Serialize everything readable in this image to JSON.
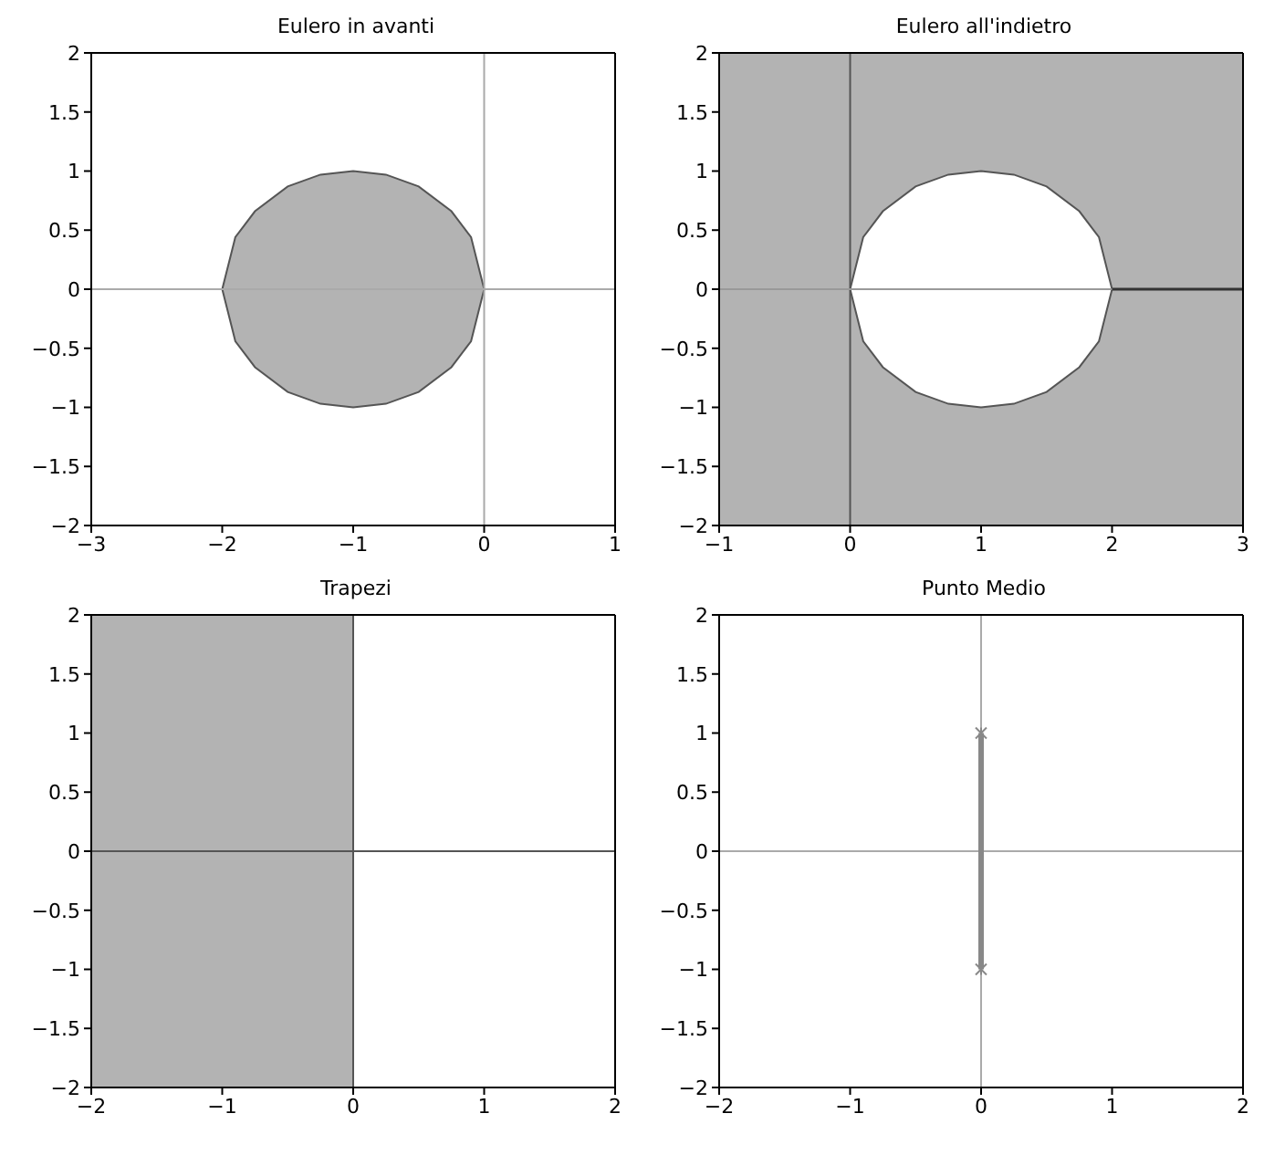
{
  "chart_data": [
    {
      "type": "area",
      "title": "Eulero in avanti",
      "xlim": [
        -3,
        1
      ],
      "ylim": [
        -2,
        2
      ],
      "xticks": [
        {
          "value": -3,
          "label": "−3"
        },
        {
          "value": -2,
          "label": "−2"
        },
        {
          "value": -1,
          "label": "−1"
        },
        0,
        1
      ],
      "yticks": [
        {
          "value": -2,
          "label": "−2"
        },
        {
          "value": -1.5,
          "label": "−1.5"
        },
        {
          "value": -1,
          "label": "−1"
        },
        {
          "value": -0.5,
          "label": "−0.5"
        },
        0,
        0.5,
        1,
        1.5,
        2
      ],
      "series": [
        {
          "color": "#b3b3b3",
          "x": [
            -2,
            -1.9,
            -1.75,
            -1.5,
            -1.25,
            -1,
            -0.75,
            -0.5,
            -0.25,
            -0.1,
            0
          ],
          "values": [
            0,
            0.44,
            0.66,
            0.87,
            0.97,
            1,
            0.97,
            0.87,
            0.66,
            0.44,
            0
          ]
        },
        {
          "color": "#b3b3b3",
          "x": [
            -2,
            -1.9,
            -1.75,
            -1.5,
            -1.25,
            -1,
            -0.75,
            -0.5,
            -0.25,
            -0.1,
            0
          ],
          "values": [
            0,
            -0.44,
            -0.66,
            -0.87,
            -0.97,
            -1,
            -0.97,
            -0.87,
            -0.66,
            -0.44,
            0
          ]
        }
      ],
      "ref_lines": [
        {
          "axis": "x",
          "value": 0,
          "color": "#aaaaaa"
        },
        {
          "axis": "y",
          "value": 0,
          "color": "#aaaaaa"
        }
      ]
    },
    {
      "type": "area",
      "title": "Eulero all'indietro",
      "xlim": [
        -1,
        3
      ],
      "ylim": [
        -2,
        2
      ],
      "xticks": [
        {
          "value": -1,
          "label": "−1"
        },
        0,
        1,
        2,
        3
      ],
      "yticks": [
        {
          "value": -2,
          "label": "−2"
        },
        {
          "value": -1.5,
          "label": "−1.5"
        },
        {
          "value": -1,
          "label": "−1"
        },
        {
          "value": -0.5,
          "label": "−0.5"
        },
        0,
        0.5,
        1,
        1.5,
        2
      ],
      "bands": [
        {
          "axis": "x",
          "from": -1,
          "to": 3,
          "color": "#b3b3b3"
        }
      ],
      "series": [
        {
          "color": "#ffffff",
          "x": [
            0,
            0.1,
            0.25,
            0.5,
            0.75,
            1,
            1.25,
            1.5,
            1.75,
            1.9,
            2
          ],
          "values": [
            0,
            0.44,
            0.66,
            0.87,
            0.97,
            1,
            0.97,
            0.87,
            0.66,
            0.44,
            0
          ]
        },
        {
          "color": "#ffffff",
          "x": [
            0,
            0.1,
            0.25,
            0.5,
            0.75,
            1,
            1.25,
            1.5,
            1.75,
            1.9,
            2
          ],
          "values": [
            0,
            -0.44,
            -0.66,
            -0.87,
            -0.97,
            -1,
            -0.97,
            -0.87,
            -0.66,
            -0.44,
            0
          ]
        },
        {
          "type": "line",
          "color": "#333333",
          "x": [
            2,
            3
          ],
          "values": [
            0,
            0
          ]
        }
      ],
      "ref_lines": [
        {
          "axis": "x",
          "value": 0,
          "color": "#555555"
        },
        {
          "axis": "y",
          "value": 0,
          "color": "#999999"
        }
      ]
    },
    {
      "type": "area",
      "title": "Trapezi",
      "xlim": [
        -2,
        2
      ],
      "ylim": [
        -2,
        2
      ],
      "xticks": [
        {
          "value": -2,
          "label": "−2"
        },
        {
          "value": -1,
          "label": "−1"
        },
        0,
        1,
        2
      ],
      "yticks": [
        {
          "value": -2,
          "label": "−2"
        },
        {
          "value": -1.5,
          "label": "−1.5"
        },
        {
          "value": -1,
          "label": "−1"
        },
        {
          "value": -0.5,
          "label": "−0.5"
        },
        0,
        0.5,
        1,
        1.5,
        2
      ],
      "series": [
        {
          "color": "#b3b3b3",
          "x": [
            -2,
            0
          ],
          "values": [
            2,
            2
          ]
        },
        {
          "color": "#b3b3b3",
          "x": [
            -2,
            0
          ],
          "values": [
            -2,
            -2
          ]
        }
      ],
      "ref_lines": [
        {
          "axis": "x",
          "value": 0,
          "color": "#555555"
        },
        {
          "axis": "y",
          "value": 0,
          "color": "#555555"
        }
      ]
    },
    {
      "type": "line",
      "title": "Punto Medio",
      "xlim": [
        -2,
        2
      ],
      "ylim": [
        -2,
        2
      ],
      "xticks": [
        {
          "value": -2,
          "label": "−2"
        },
        {
          "value": -1,
          "label": "−1"
        },
        0,
        1,
        2
      ],
      "yticks": [
        {
          "value": -2,
          "label": "−2"
        },
        {
          "value": -1.5,
          "label": "−1.5"
        },
        {
          "value": -1,
          "label": "−1"
        },
        {
          "value": -0.5,
          "label": "−0.5"
        },
        0,
        0.5,
        1,
        1.5,
        2
      ],
      "marker": "cross",
      "series": [
        {
          "color": "#888888",
          "x": [
            0,
            0
          ],
          "values": [
            -1,
            1
          ]
        }
      ],
      "ref_lines": [
        {
          "axis": "x",
          "value": 0,
          "color": "#aaaaaa"
        },
        {
          "axis": "y",
          "value": 0,
          "color": "#aaaaaa"
        }
      ]
    }
  ]
}
